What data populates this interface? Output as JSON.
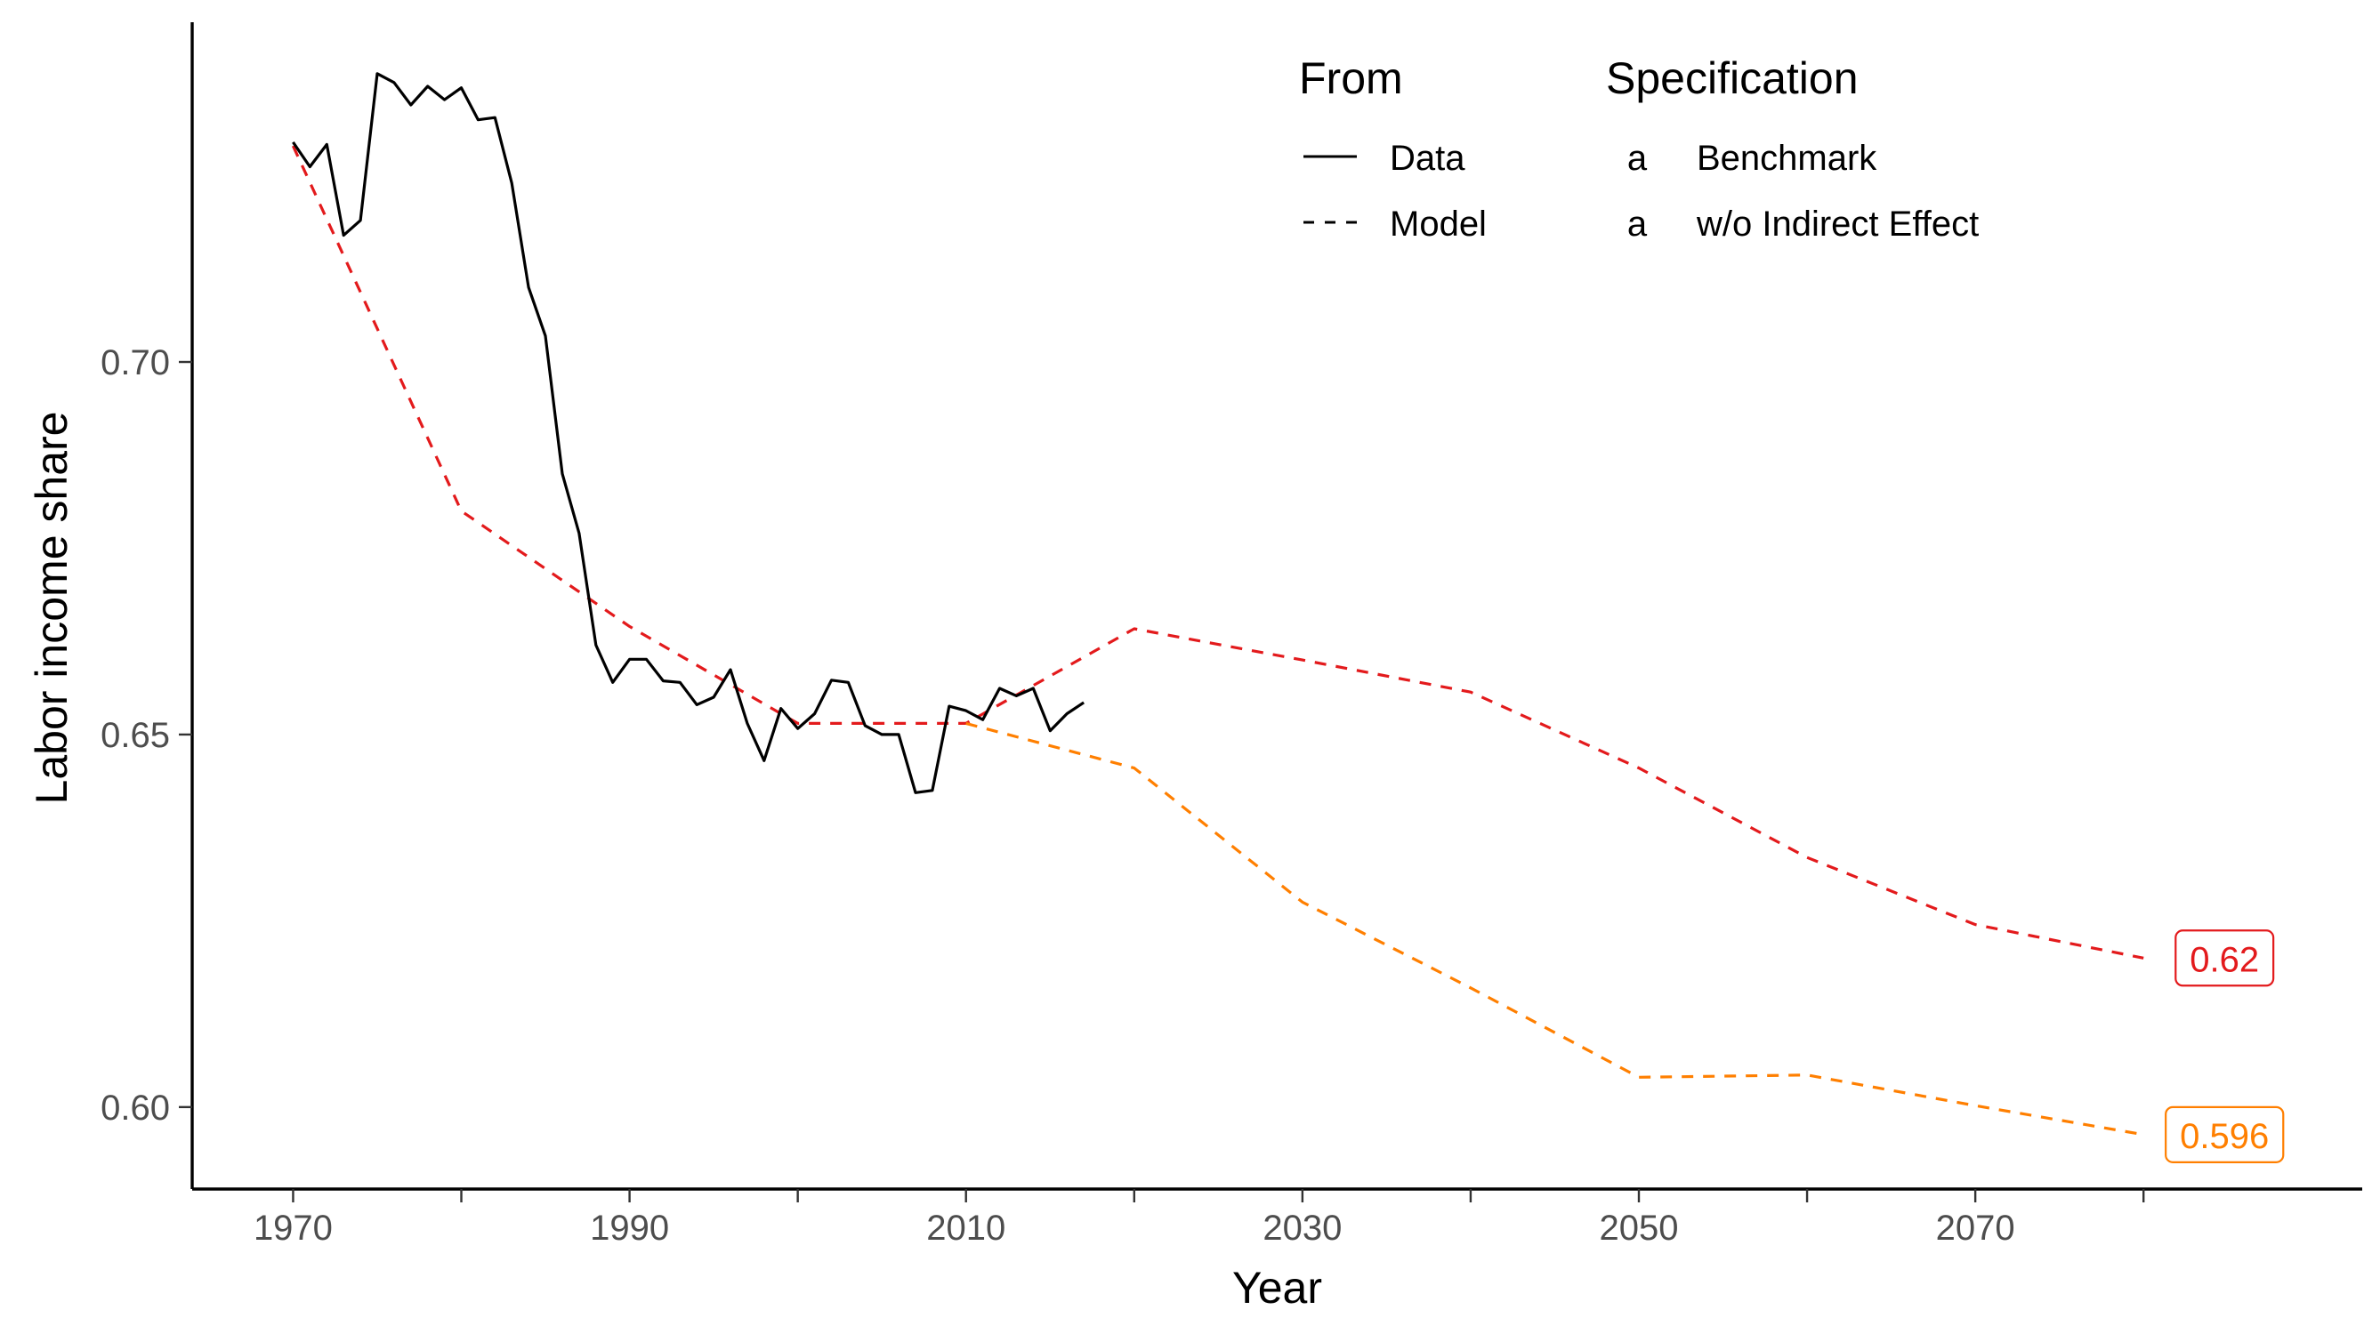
{
  "chart_data": {
    "type": "line",
    "xlabel": "Year",
    "ylabel": "Labor income share",
    "xlim": [
      1964,
      2093
    ],
    "ylim": [
      0.589,
      0.745
    ],
    "x_ticks": [
      1970,
      1980,
      1990,
      2000,
      2010,
      2020,
      2030,
      2040,
      2050,
      2060,
      2070,
      2080
    ],
    "x_tick_labels": [
      "1970",
      "",
      "1990",
      "",
      "2010",
      "",
      "2030",
      "",
      "2050",
      "",
      "2070",
      ""
    ],
    "y_ticks": [
      0.6,
      0.65,
      0.7
    ],
    "y_tick_labels": [
      "0.60",
      "0.65",
      "0.70"
    ],
    "grid": false,
    "legend": {
      "placement": "top-right",
      "from": {
        "title": "From",
        "entries": [
          {
            "label": "Data",
            "linestyle": "solid"
          },
          {
            "label": "Model",
            "linestyle": "dashed"
          }
        ]
      },
      "specification": {
        "title": "Specification",
        "key_glyph": "a",
        "entries": [
          {
            "label": "Benchmark",
            "color": "#e31a1c"
          },
          {
            "label": "w/o Indirect Effect",
            "color": "#ff7f00"
          }
        ]
      }
    },
    "series": [
      {
        "name": "Data",
        "style": "solid",
        "color": "#000000",
        "x": [
          1970,
          1971,
          1972,
          1973,
          1974,
          1975,
          1976,
          1977,
          1978,
          1979,
          1980,
          1981,
          1982,
          1983,
          1984,
          1985,
          1986,
          1987,
          1988,
          1989,
          1990,
          1991,
          1992,
          1993,
          1994,
          1995,
          1996,
          1997,
          1998,
          1999,
          2000,
          2001,
          2002,
          2003,
          2004,
          2005,
          2006,
          2007,
          2008,
          2009,
          2010,
          2011,
          2012,
          2013,
          2014,
          2015,
          2016,
          2017
        ],
        "y": [
          0.7295,
          0.7262,
          0.7292,
          0.717,
          0.719,
          0.7387,
          0.7375,
          0.7345,
          0.737,
          0.7352,
          0.7368,
          0.7325,
          0.7328,
          0.724,
          0.71,
          0.7035,
          0.685,
          0.677,
          0.662,
          0.657,
          0.6601,
          0.6601,
          0.6572,
          0.657,
          0.654,
          0.655,
          0.6587,
          0.6515,
          0.6465,
          0.6535,
          0.6508,
          0.6528,
          0.6573,
          0.657,
          0.6512,
          0.65,
          0.65,
          0.6422,
          0.6425,
          0.6538,
          0.6532,
          0.652,
          0.6562,
          0.6552,
          0.6562,
          0.6505,
          0.6528,
          0.6543
        ]
      },
      {
        "name": "Benchmark",
        "style": "dashed",
        "color": "#e31a1c",
        "x": [
          1970,
          1980,
          1990,
          2000,
          2010,
          2020,
          2030,
          2040,
          2050,
          2060,
          2070,
          2080
        ],
        "y": [
          0.729,
          0.68,
          0.6645,
          0.6515,
          0.6515,
          0.6642,
          0.66,
          0.6557,
          0.6455,
          0.6335,
          0.6245,
          0.62
        ],
        "end_label": "0.62"
      },
      {
        "name": "w/o Indirect Effect",
        "style": "dashed",
        "color": "#ff7f00",
        "x": [
          2010,
          2020,
          2030,
          2040,
          2050,
          2060,
          2070,
          2080
        ],
        "y": [
          0.6515,
          0.6455,
          0.6275,
          0.616,
          0.604,
          0.6043,
          0.6002,
          0.5963
        ],
        "end_label": "0.596"
      }
    ]
  }
}
